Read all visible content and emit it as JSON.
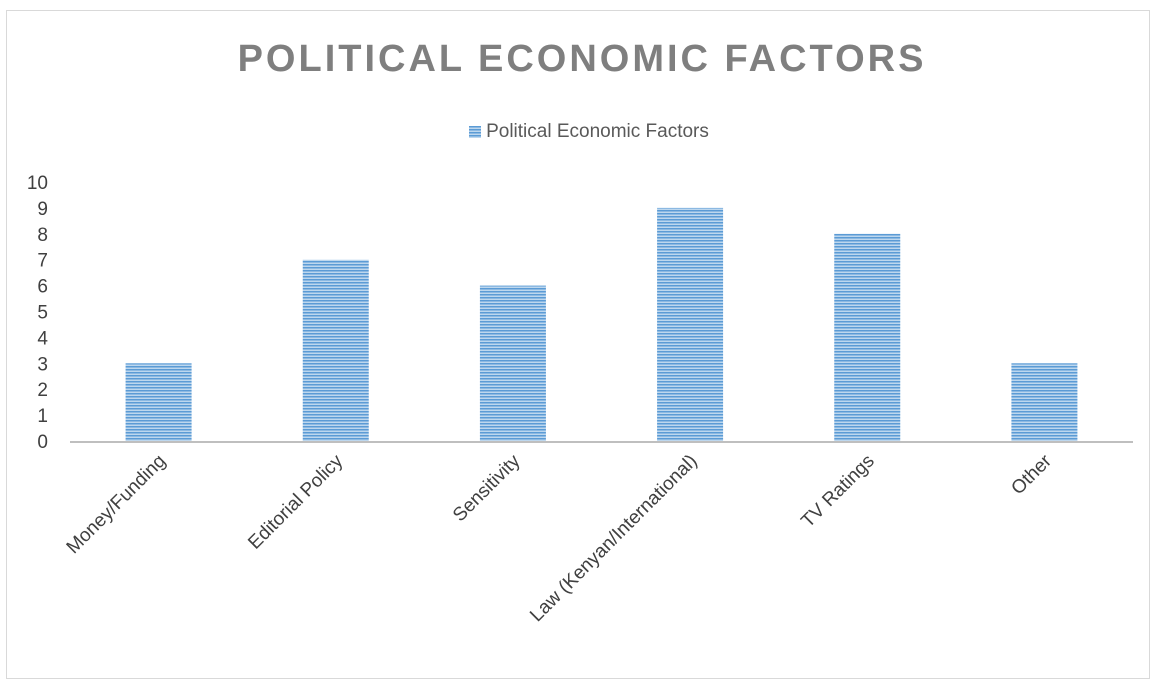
{
  "chart_data": {
    "type": "bar",
    "title": "POLITICAL ECONOMIC FACTORS",
    "xlabel": "",
    "ylabel": "",
    "categories": [
      "Money/Funding",
      "Editorial Policy",
      "Sensitivity",
      "Law (Kenyan/International)",
      "TV Ratings",
      "Other"
    ],
    "series": [
      {
        "name": "Political Economic Factors",
        "values": [
          3,
          7,
          6,
          9,
          8,
          3
        ]
      }
    ],
    "ylim": [
      0,
      10
    ],
    "yticks": [
      0,
      1,
      2,
      3,
      4,
      5,
      6,
      7,
      8,
      9,
      10
    ],
    "grid": false,
    "legend_position": "top",
    "colors": {
      "bar": "#5b9bd5",
      "bar_stripe": "#bdd7ee",
      "axis": "#bfbfbf",
      "title": "#7f7f7f"
    }
  }
}
